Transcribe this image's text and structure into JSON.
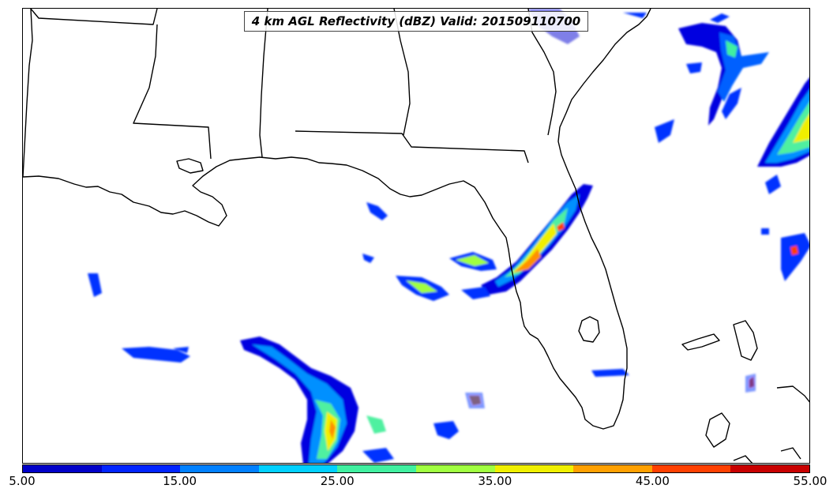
{
  "title": "4 km AGL Reflectivity (dBZ) Valid: 201509110700",
  "colorbar": {
    "colors": [
      "#0000c8",
      "#0024ff",
      "#0080ff",
      "#00d0ff",
      "#40f0a0",
      "#a0ff40",
      "#f0f000",
      "#ffa000",
      "#ff4000",
      "#c80000"
    ],
    "ticks": [
      "5.00",
      "15.00",
      "25.00",
      "35.00",
      "45.00",
      "55.00"
    ],
    "min": 5,
    "max": 55
  }
}
